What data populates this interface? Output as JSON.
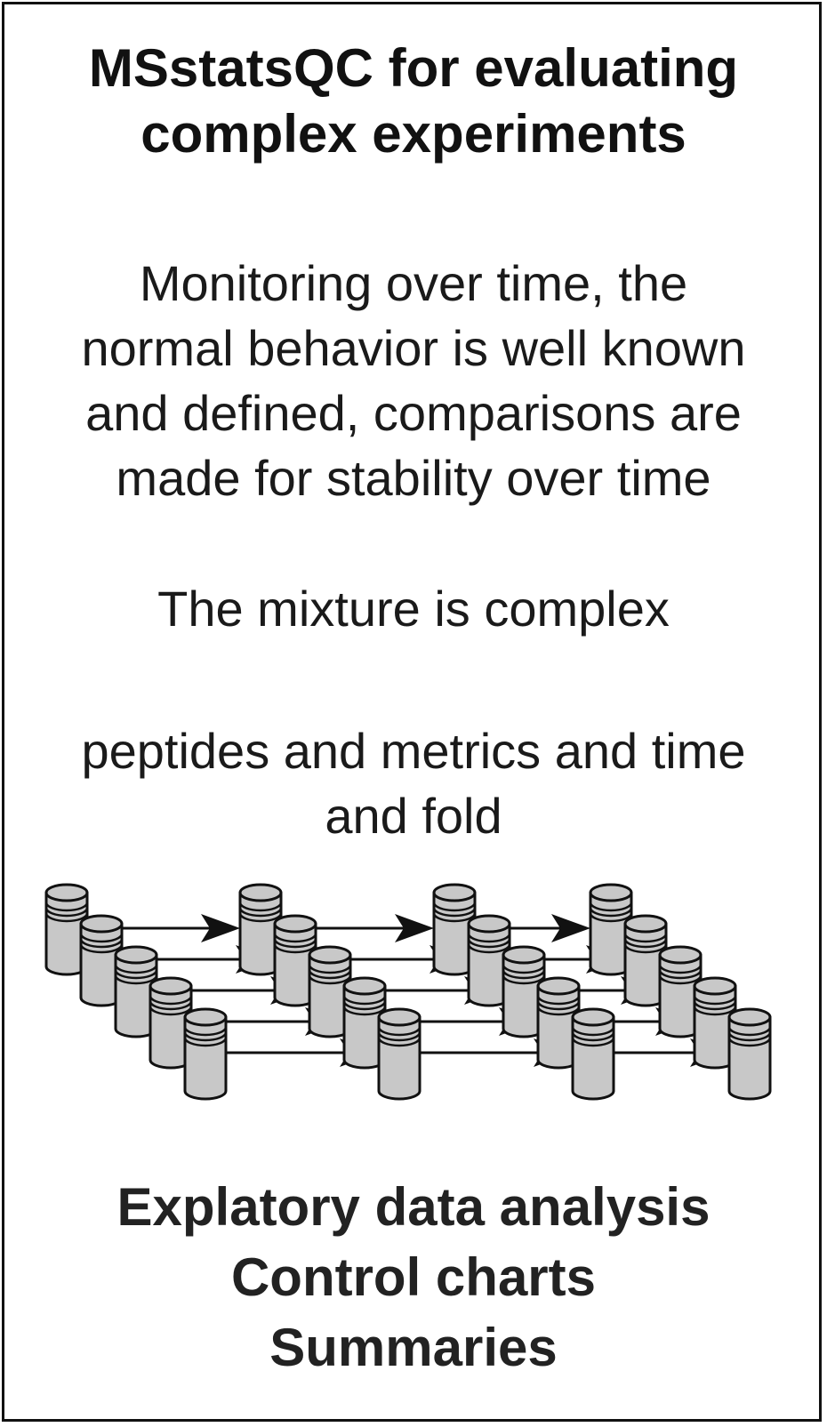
{
  "title": {
    "line1": "MSstatsQC for evaluating",
    "line2": "complex experiments"
  },
  "monitoring": {
    "line1": "Monitoring over time, the",
    "line2": "normal behavior is well known",
    "line3": "and defined, comparisons are",
    "line4": "made for stability over time"
  },
  "mixture": {
    "line1": "The mixture is complex"
  },
  "peptides": {
    "line1": "peptides and metrics and time",
    "line2": "and fold"
  },
  "diagram": {
    "cylinder_fill": "#c8c8c8",
    "stroke": "#111111",
    "groups": 4,
    "cylinders_per_group": 5
  },
  "outputs": {
    "line1": "Explatory data analysis",
    "line2": "Control charts",
    "line3": "Summaries"
  }
}
